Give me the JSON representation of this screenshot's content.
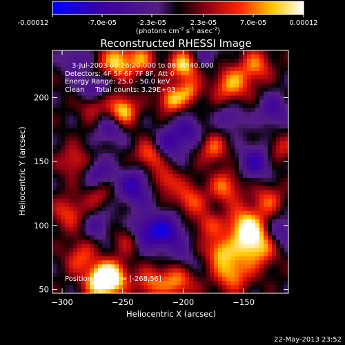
{
  "chart_data": {
    "type": "heatmap",
    "title": "Reconstructed RHESSI Image",
    "colorbar": {
      "tick_labels": [
        "-0.00012",
        "-7.0e-05",
        "-2.3e-05",
        "2.3e-05",
        "7.0e-05",
        "0.00012"
      ],
      "range": [
        -0.00012,
        0.00012
      ],
      "units_main": "(photons cm",
      "units_exp1": "-2",
      "units_mid": " s",
      "units_exp2": "-1",
      "units_end": " asec",
      "units_exp3": "-2",
      "units_close": ")"
    },
    "xlabel": "Heliocentric X (arcsec)",
    "ylabel": "Heliocentric Y (arcsec)",
    "xlim": [
      -308,
      -113
    ],
    "ylim": [
      47,
      237
    ],
    "x_ticks": [
      -300,
      -250,
      -200,
      -150
    ],
    "x_tick_labels": [
      "−300",
      "−250",
      "−200",
      "−150"
    ],
    "y_ticks": [
      50,
      100,
      150,
      200
    ],
    "y_tick_labels": [
      "50",
      "100",
      "150",
      "200"
    ],
    "annotations": [
      "3-Jul-2003 08:26:20.000 to 08:30:40.000",
      "Detectors: 4F 5F 6F 7F 8F, Att 0",
      "Energy Range: 25.0 - 50.0 keV",
      "Clean     Total counts: 3.29E+03",
      "Position of Peak = [-268,56]"
    ],
    "blobs": [
      {
        "x": -268,
        "y": 56,
        "v": 1.0,
        "s": 9
      },
      {
        "x": -258,
        "y": 60,
        "v": 0.8,
        "s": 9
      },
      {
        "x": -228,
        "y": 55,
        "v": 0.55,
        "s": 8
      },
      {
        "x": -205,
        "y": 58,
        "v": 0.75,
        "s": 10
      },
      {
        "x": -160,
        "y": 63,
        "v": 0.7,
        "s": 10
      },
      {
        "x": -140,
        "y": 85,
        "v": 0.9,
        "s": 12
      },
      {
        "x": -150,
        "y": 100,
        "v": 0.75,
        "s": 10
      },
      {
        "x": -170,
        "y": 80,
        "v": 0.65,
        "s": 8
      },
      {
        "x": -130,
        "y": 120,
        "v": 0.5,
        "s": 9
      },
      {
        "x": -165,
        "y": 130,
        "v": 0.6,
        "s": 9
      },
      {
        "x": -175,
        "y": 160,
        "v": 0.55,
        "s": 8
      },
      {
        "x": -160,
        "y": 210,
        "v": 0.7,
        "s": 10
      },
      {
        "x": -140,
        "y": 225,
        "v": 0.6,
        "s": 9
      },
      {
        "x": -275,
        "y": 195,
        "v": 0.55,
        "s": 8
      },
      {
        "x": -250,
        "y": 190,
        "v": 0.85,
        "s": 8
      },
      {
        "x": -255,
        "y": 228,
        "v": 0.8,
        "s": 9
      },
      {
        "x": -235,
        "y": 230,
        "v": 0.6,
        "s": 8
      },
      {
        "x": -210,
        "y": 198,
        "v": 0.75,
        "s": 7
      },
      {
        "x": -195,
        "y": 205,
        "v": 0.6,
        "s": 7
      },
      {
        "x": -200,
        "y": 225,
        "v": 0.85,
        "s": 8
      },
      {
        "x": -228,
        "y": 155,
        "v": 0.6,
        "s": 8
      },
      {
        "x": -195,
        "y": 120,
        "v": 0.55,
        "s": 9
      },
      {
        "x": -215,
        "y": 135,
        "v": 0.5,
        "s": 8
      },
      {
        "x": -290,
        "y": 150,
        "v": 0.45,
        "s": 9
      },
      {
        "x": -295,
        "y": 110,
        "v": 0.5,
        "s": 9
      },
      {
        "x": -270,
        "y": 125,
        "v": 0.4,
        "s": 8
      },
      {
        "x": -285,
        "y": 75,
        "v": 0.5,
        "s": 9
      },
      {
        "x": -120,
        "y": 160,
        "v": 0.4,
        "s": 8
      },
      {
        "x": -245,
        "y": 90,
        "v": 0.45,
        "s": 8
      },
      {
        "x": -180,
        "y": 100,
        "v": 0.45,
        "s": 8
      },
      {
        "x": -275,
        "y": 205,
        "v": -0.55,
        "s": 9
      },
      {
        "x": -240,
        "y": 130,
        "v": -0.65,
        "s": 10
      },
      {
        "x": -270,
        "y": 140,
        "v": -0.5,
        "s": 9
      },
      {
        "x": -215,
        "y": 95,
        "v": -0.75,
        "s": 11
      },
      {
        "x": -235,
        "y": 95,
        "v": -0.55,
        "s": 9
      },
      {
        "x": -210,
        "y": 165,
        "v": -0.55,
        "s": 9
      },
      {
        "x": -140,
        "y": 150,
        "v": -0.6,
        "s": 10
      },
      {
        "x": -125,
        "y": 190,
        "v": -0.5,
        "s": 9
      },
      {
        "x": -120,
        "y": 95,
        "v": -0.5,
        "s": 9
      },
      {
        "x": -195,
        "y": 175,
        "v": -0.45,
        "s": 8
      },
      {
        "x": -260,
        "y": 175,
        "v": -0.45,
        "s": 8
      },
      {
        "x": -290,
        "y": 230,
        "v": -0.4,
        "s": 8
      },
      {
        "x": -180,
        "y": 235,
        "v": -0.35,
        "s": 8
      },
      {
        "x": -200,
        "y": 70,
        "v": -0.4,
        "s": 8
      },
      {
        "x": -270,
        "y": 100,
        "v": -0.4,
        "s": 8
      },
      {
        "x": -160,
        "y": 185,
        "v": -0.4,
        "s": 8
      }
    ]
  },
  "footer": {
    "timestamp": "22-May-2013 23:52"
  }
}
